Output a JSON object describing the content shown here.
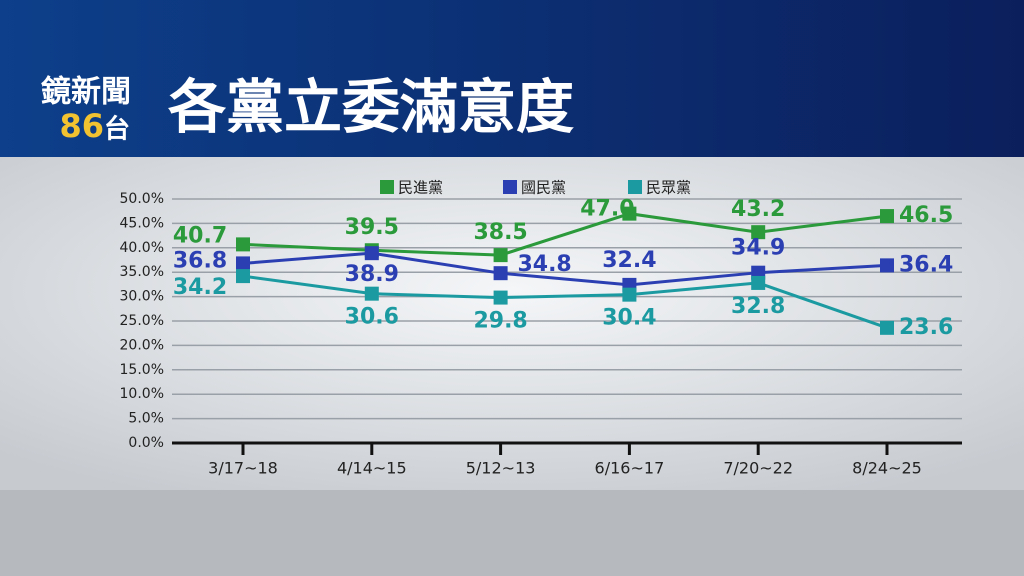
{
  "header": {
    "channel": "鏡新聞",
    "number": "86",
    "suffix": "台"
  },
  "chart_data": {
    "type": "line",
    "title": "各黨立委滿意度",
    "categories": [
      "3/17~18",
      "4/14~15",
      "5/12~13",
      "6/16~17",
      "7/20~22",
      "8/24~25"
    ],
    "series": [
      {
        "name": "民進黨",
        "color": "#2a9a3a",
        "values": [
          40.7,
          39.5,
          38.5,
          47.0,
          43.2,
          46.5
        ],
        "value_labels": [
          "40.7",
          "39.5",
          "38.5",
          "47.0",
          "43.2",
          "46.5"
        ]
      },
      {
        "name": "國民黨",
        "color": "#2b3fb3",
        "values": [
          36.8,
          38.9,
          34.8,
          32.4,
          34.9,
          36.4
        ]
      },
      {
        "name": "民眾黨",
        "color": "#1b9ba1",
        "values": [
          34.2,
          30.6,
          29.8,
          30.4,
          32.8,
          23.6
        ]
      }
    ],
    "ylim": [
      0,
      50
    ],
    "yticks": [
      {
        "value": 0,
        "label": "0.0%"
      },
      {
        "value": 5,
        "label": "5.0%"
      },
      {
        "value": 10,
        "label": "10.0%"
      },
      {
        "value": 15,
        "label": "15.0%"
      },
      {
        "value": 20,
        "label": "20.0%"
      },
      {
        "value": 25,
        "label": "25.0%"
      },
      {
        "value": 30,
        "label": "30.0%"
      },
      {
        "value": 35,
        "label": "35.0%"
      },
      {
        "value": 40,
        "label": "40.0%"
      },
      {
        "value": 45,
        "label": "45.0%"
      },
      {
        "value": 50,
        "label": "50.0%"
      }
    ],
    "grid": true,
    "legend": "top"
  }
}
